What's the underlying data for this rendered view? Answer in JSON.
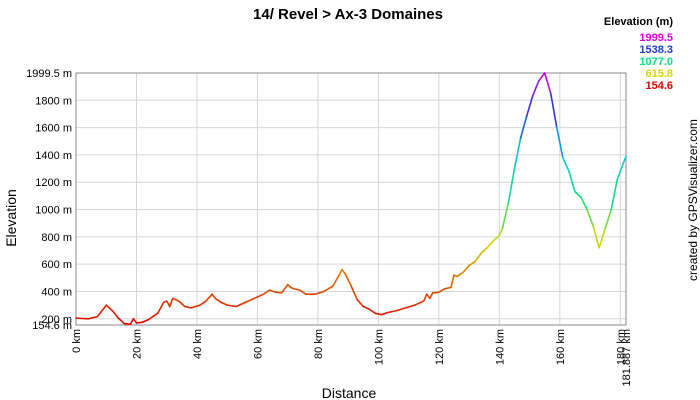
{
  "chart_data": {
    "type": "line",
    "title": "14/ Revel > Ax-3 Domaines",
    "xlabel": "Distance",
    "ylabel": "Elevation",
    "xlim": [
      0,
      181.887
    ],
    "ylim": [
      154.6,
      1999.5
    ],
    "grid": true,
    "x_ticks": [
      0,
      20,
      40,
      60,
      80,
      100,
      120,
      140,
      160,
      180,
      181.887
    ],
    "x_tick_labels": [
      "0 km",
      "20 km",
      "40 km",
      "60 km",
      "80 km",
      "100 km",
      "120 km",
      "140 km",
      "160 km",
      "180 km",
      "181.887 km"
    ],
    "y_ticks": [
      154.6,
      200,
      400,
      600,
      800,
      1000,
      1200,
      1400,
      1600,
      1800,
      1999.5
    ],
    "y_tick_labels": [
      "154.6 m",
      "200 m",
      "400 m",
      "600 m",
      "800 m",
      "1000 m",
      "1200 m",
      "1400 m",
      "1600 m",
      "1800 m",
      "1999.5 m"
    ],
    "legend": {
      "title": "Elevation (m)",
      "placement": "top-right",
      "entries": [
        {
          "label": "1999.5",
          "color": "#e000e0"
        },
        {
          "label": "1538.3",
          "color": "#1a3fd0"
        },
        {
          "label": "1077.0",
          "color": "#10e080"
        },
        {
          "label": "615.8",
          "color": "#d8d800"
        },
        {
          "label": "154.6",
          "color": "#e00000"
        }
      ]
    },
    "color_scale": [
      "#e00000",
      "#e06000",
      "#d8d800",
      "#10e080",
      "#10c8e0",
      "#1a3fd0",
      "#e000e0"
    ],
    "series": [
      {
        "x": [
          0,
          4,
          7,
          9,
          10,
          12,
          14,
          16,
          18,
          19,
          20,
          22,
          24,
          27,
          29,
          30,
          31,
          32,
          34,
          36,
          38,
          41,
          43,
          45,
          46,
          48,
          50,
          53,
          56,
          59,
          62,
          64,
          66,
          68,
          70,
          71,
          72,
          74,
          76,
          79,
          82,
          85,
          87,
          88,
          89,
          91,
          93,
          95,
          97,
          99,
          101,
          103,
          106,
          109,
          112,
          115,
          116,
          117,
          118,
          120,
          122,
          124,
          125,
          126,
          128,
          130,
          132,
          134,
          136,
          138,
          140,
          141,
          143,
          145,
          147,
          149,
          151,
          153,
          155,
          157,
          159,
          161,
          163,
          165,
          167,
          169,
          171,
          173,
          175,
          177,
          179,
          181.887
        ],
        "y": [
          205,
          200,
          215,
          270,
          300,
          260,
          205,
          165,
          160,
          200,
          170,
          175,
          195,
          240,
          320,
          330,
          290,
          350,
          330,
          290,
          280,
          300,
          330,
          380,
          350,
          320,
          300,
          290,
          320,
          350,
          380,
          410,
          395,
          390,
          450,
          430,
          420,
          410,
          380,
          380,
          400,
          440,
          520,
          560,
          530,
          440,
          340,
          290,
          270,
          240,
          230,
          245,
          260,
          280,
          300,
          330,
          380,
          350,
          390,
          395,
          420,
          430,
          520,
          510,
          540,
          590,
          620,
          680,
          720,
          770,
          810,
          860,
          1050,
          1300,
          1520,
          1680,
          1830,
          1940,
          1999.5,
          1850,
          1600,
          1380,
          1280,
          1130,
          1090,
          1000,
          880,
          720,
          860,
          1000,
          1220,
          1390
        ]
      }
    ],
    "credit": "created by GPSVisualizer.com"
  }
}
